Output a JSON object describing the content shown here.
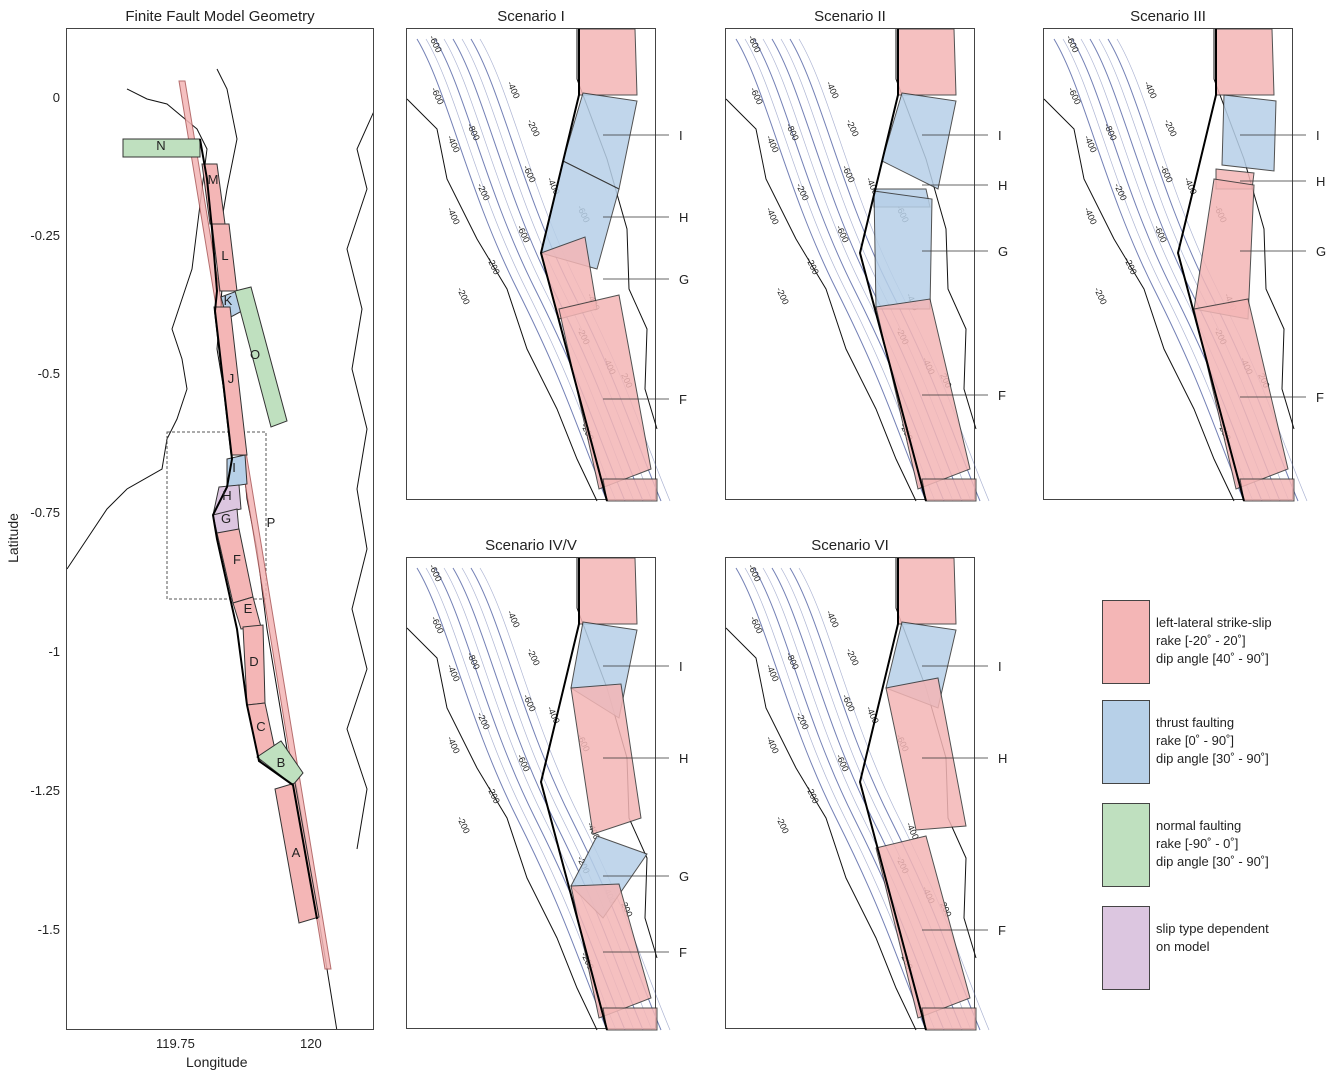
{
  "main_panel": {
    "title": "Finite Fault Model Geometry",
    "xlabel": "Longitude",
    "ylabel": "Latitude",
    "xticks": [
      "119.75",
      "120"
    ],
    "yticks": [
      "0",
      "-0.25",
      "-0.5",
      "-0.75",
      "-1",
      "-1.25",
      "-1.5"
    ],
    "segment_labels": [
      "N",
      "M",
      "L",
      "K",
      "O",
      "J",
      "I",
      "H",
      "G",
      "F",
      "P",
      "E",
      "D",
      "C",
      "B",
      "A"
    ]
  },
  "scenarios": [
    {
      "title": "Scenario I",
      "labels": [
        "I",
        "H",
        "G",
        "F"
      ]
    },
    {
      "title": "Scenario II",
      "labels": [
        "I",
        "H",
        "G",
        "F"
      ]
    },
    {
      "title": "Scenario III",
      "labels": [
        "I",
        "H",
        "G",
        "F"
      ]
    },
    {
      "title": "Scenario IV/V",
      "labels": [
        "I",
        "H",
        "G",
        "F"
      ]
    },
    {
      "title": "Scenario VI",
      "labels": [
        "I",
        "H",
        "F"
      ]
    }
  ],
  "contour_labels": [
    "-600",
    "-400",
    "-800",
    "-600",
    "-400",
    "-200",
    "-600",
    "-200",
    "-400",
    "-600",
    "-200",
    "-400",
    "-200",
    "-600",
    "-400",
    "-200",
    "-400",
    "200",
    "-200"
  ],
  "legend": [
    {
      "color": "#f4b6b6",
      "text": "left-lateral strike-slip\nrake [-20˚ - 20˚]\ndip angle [40˚ - 90˚]"
    },
    {
      "color": "#b7d0e8",
      "text": "thrust faulting\nrake [0˚ - 90˚]\ndip angle [30˚ - 90˚]"
    },
    {
      "color": "#bfe0bf",
      "text": "normal faulting\nrake [-90˚ - 0˚]\ndip angle [30˚ - 90˚]"
    },
    {
      "color": "#dcc6e0",
      "text": "slip type dependent\non model"
    }
  ],
  "colors": {
    "strike_slip": "#f4b6b6",
    "thrust": "#b7d0e8",
    "normal": "#bfe0bf",
    "dependent": "#dcc6e0",
    "contour": "#5a6aa8"
  }
}
